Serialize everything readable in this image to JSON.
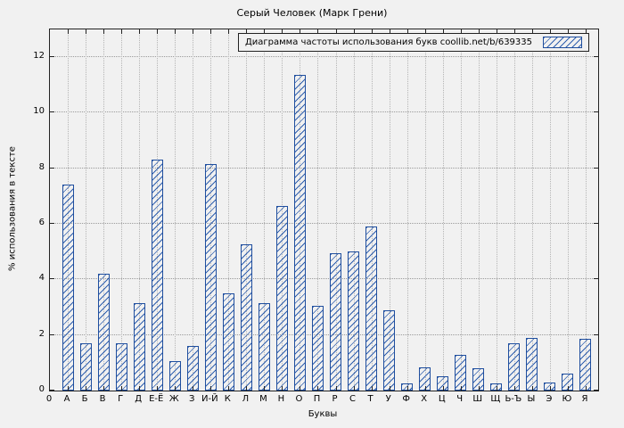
{
  "chart_data": {
    "type": "bar",
    "title": "Серый Человек (Марк Грени)",
    "legend": "Диаграмма частоты использования букв coollib.net/b/639335",
    "xlabel": "Буквы",
    "ylabel": "% использования в тексте",
    "origin_label": "0",
    "categories": [
      "А",
      "Б",
      "В",
      "Г",
      "Д",
      "Е-Ё",
      "Ж",
      "З",
      "И-Й",
      "К",
      "Л",
      "М",
      "Н",
      "О",
      "П",
      "Р",
      "С",
      "Т",
      "У",
      "Ф",
      "Х",
      "Ц",
      "Ч",
      "Ш",
      "Щ",
      "Ь-Ъ",
      "Ы",
      "Э",
      "Ю",
      "Я"
    ],
    "values": [
      7.4,
      1.7,
      4.2,
      1.7,
      3.15,
      8.3,
      1.05,
      1.6,
      8.15,
      3.5,
      5.25,
      3.15,
      6.65,
      11.35,
      3.05,
      4.95,
      5.0,
      5.9,
      2.9,
      0.25,
      0.85,
      0.5,
      1.3,
      0.8,
      0.25,
      1.7,
      1.9,
      0.3,
      0.6,
      1.85
    ],
    "y_ticks": [
      0,
      2,
      4,
      6,
      8,
      10,
      12
    ],
    "ylim": [
      0,
      13
    ],
    "grid": true,
    "legend_position": "top-right",
    "colors": {
      "background": "#f1f1f1",
      "bar_border": "#1f4e9e",
      "bar_hatch": "#2f5fae",
      "grid": "#9a9a9a",
      "text": "#000000"
    }
  }
}
